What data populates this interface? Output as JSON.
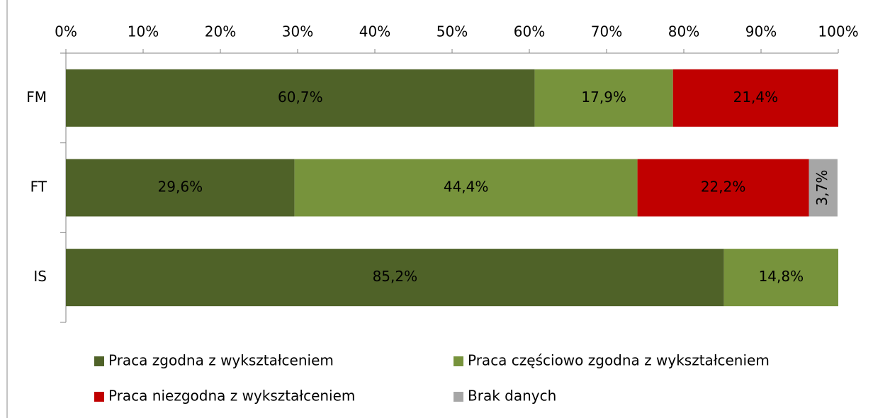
{
  "chart_data": {
    "type": "stacked_barh",
    "categories": [
      "FM",
      "FT",
      "IS"
    ],
    "series": [
      {
        "name": "Praca zgodna z wykształceniem",
        "color": "#4f6228",
        "label_color": "#ffffff",
        "values": [
          60.7,
          29.6,
          85.2
        ],
        "value_labels": [
          "60,7%",
          "29,6%",
          "85,2%"
        ]
      },
      {
        "name": "Praca częściowo zgodna z wykształceniem",
        "color": "#77933c",
        "label_color": "#000000",
        "values": [
          17.9,
          44.4,
          14.8
        ],
        "value_labels": [
          "17,9%",
          "44,4%",
          "14,8%"
        ]
      },
      {
        "name": "Praca niezgodna z wykształceniem",
        "color": "#c00000",
        "label_color": "#ffffff",
        "values": [
          21.4,
          22.2,
          null
        ],
        "value_labels": [
          "21,4%",
          "22,2%",
          null
        ]
      },
      {
        "name": "Brak danych",
        "color": "#a6a6a6",
        "label_color": "#000000",
        "values": [
          null,
          3.7,
          null
        ],
        "value_labels": [
          null,
          "3,7%",
          null
        ]
      }
    ],
    "xlim": [
      0,
      100
    ],
    "xticks": [
      {
        "value": 0,
        "label": "0%"
      },
      {
        "value": 10,
        "label": "10%"
      },
      {
        "value": 20,
        "label": "20%"
      },
      {
        "value": 30,
        "label": "30%"
      },
      {
        "value": 40,
        "label": "40%"
      },
      {
        "value": 50,
        "label": "50%"
      },
      {
        "value": 60,
        "label": "60%"
      },
      {
        "value": 70,
        "label": "70%"
      },
      {
        "value": 80,
        "label": "80%"
      },
      {
        "value": 90,
        "label": "90%"
      },
      {
        "value": 100,
        "label": "100%"
      }
    ]
  }
}
